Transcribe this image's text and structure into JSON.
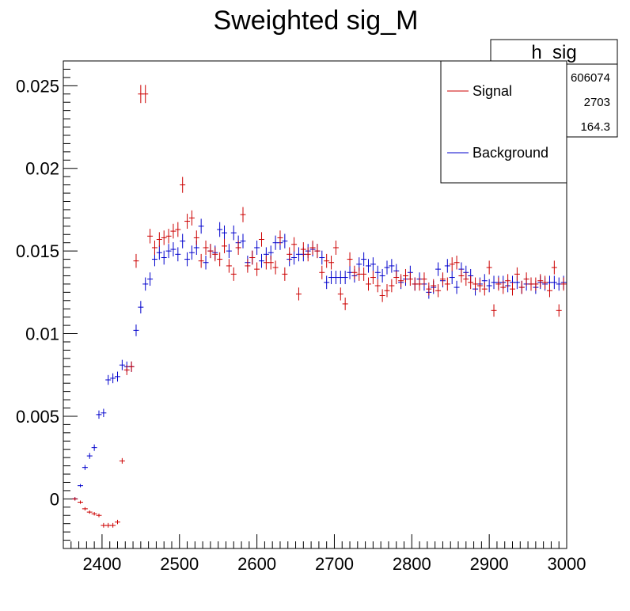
{
  "chart_data": {
    "type": "scatter",
    "title": "Sweighted sig_M",
    "xlabel": "",
    "ylabel": "",
    "xlim": [
      2350,
      3000
    ],
    "ylim": [
      -0.003,
      0.0265
    ],
    "x_ticks": [
      "2400",
      "2500",
      "2600",
      "2700",
      "2800",
      "2900",
      "3000"
    ],
    "y_ticks": [
      "0",
      "0.005",
      "0.01",
      "0.015",
      "0.02",
      "0.025"
    ],
    "grid": false,
    "legend_position": "top-right",
    "stats_box": {
      "title": "h_sig",
      "values": [
        "606074",
        "2703",
        "164.3"
      ]
    },
    "series": [
      {
        "name": "Signal",
        "color": "#cc0000",
        "x": [
          2365,
          2372,
          2378,
          2384,
          2390,
          2396,
          2402,
          2408,
          2414,
          2420,
          2426,
          2432,
          2438,
          2444,
          2450,
          2456,
          2462,
          2468,
          2474,
          2480,
          2486,
          2492,
          2498,
          2504,
          2510,
          2516,
          2522,
          2528,
          2534,
          2540,
          2546,
          2552,
          2558,
          2564,
          2570,
          2576,
          2582,
          2588,
          2594,
          2600,
          2606,
          2612,
          2618,
          2624,
          2630,
          2636,
          2642,
          2648,
          2654,
          2660,
          2666,
          2672,
          2678,
          2684,
          2690,
          2696,
          2702,
          2708,
          2714,
          2720,
          2726,
          2732,
          2738,
          2744,
          2750,
          2756,
          2762,
          2768,
          2774,
          2780,
          2786,
          2792,
          2798,
          2804,
          2810,
          2816,
          2822,
          2828,
          2834,
          2840,
          2846,
          2852,
          2858,
          2864,
          2870,
          2876,
          2882,
          2888,
          2894,
          2900,
          2906,
          2912,
          2918,
          2924,
          2930,
          2936,
          2942,
          2948,
          2954,
          2960,
          2966,
          2972,
          2978,
          2984,
          2990,
          2996
        ],
        "values": [
          0.0,
          -0.0002,
          -0.0006,
          -0.0008,
          -0.0009,
          -0.001,
          -0.0016,
          -0.0016,
          -0.0016,
          -0.0014,
          0.0023,
          0.0078,
          0.008,
          0.0144,
          0.0245,
          0.0245,
          0.0159,
          0.0152,
          0.0157,
          0.0158,
          0.0159,
          0.0162,
          0.0163,
          0.019,
          0.0168,
          0.017,
          0.0158,
          0.0144,
          0.0152,
          0.015,
          0.0148,
          0.0145,
          0.0153,
          0.0141,
          0.0136,
          0.0152,
          0.0172,
          0.0141,
          0.0146,
          0.0139,
          0.0157,
          0.0143,
          0.0143,
          0.014,
          0.0158,
          0.0136,
          0.0148,
          0.0154,
          0.0124,
          0.0151,
          0.0148,
          0.0152,
          0.015,
          0.0137,
          0.0144,
          0.0143,
          0.0152,
          0.0124,
          0.0118,
          0.0145,
          0.0137,
          0.0136,
          0.0136,
          0.013,
          0.0134,
          0.0129,
          0.0123,
          0.0126,
          0.0129,
          0.0134,
          0.0132,
          0.0135,
          0.0133,
          0.013,
          0.013,
          0.0133,
          0.0127,
          0.0129,
          0.0126,
          0.0133,
          0.013,
          0.0142,
          0.0143,
          0.0135,
          0.0133,
          0.0131,
          0.013,
          0.0129,
          0.0127,
          0.014,
          0.0114,
          0.013,
          0.0128,
          0.0132,
          0.0127,
          0.0136,
          0.0128,
          0.0133,
          0.013,
          0.013,
          0.0132,
          0.0131,
          0.0126,
          0.014,
          0.0114,
          0.013
        ]
      },
      {
        "name": "Background",
        "color": "#0000cc",
        "x": [
          2365,
          2372,
          2378,
          2384,
          2390,
          2396,
          2402,
          2408,
          2414,
          2420,
          2426,
          2432,
          2438,
          2444,
          2450,
          2456,
          2462,
          2468,
          2474,
          2480,
          2486,
          2492,
          2498,
          2504,
          2510,
          2516,
          2522,
          2528,
          2534,
          2540,
          2546,
          2552,
          2558,
          2564,
          2570,
          2576,
          2582,
          2588,
          2594,
          2600,
          2606,
          2612,
          2618,
          2624,
          2630,
          2636,
          2642,
          2648,
          2654,
          2660,
          2666,
          2672,
          2678,
          2684,
          2690,
          2696,
          2702,
          2708,
          2714,
          2720,
          2726,
          2732,
          2738,
          2744,
          2750,
          2756,
          2762,
          2768,
          2774,
          2780,
          2786,
          2792,
          2798,
          2804,
          2810,
          2816,
          2822,
          2828,
          2834,
          2840,
          2846,
          2852,
          2858,
          2864,
          2870,
          2876,
          2882,
          2888,
          2894,
          2900,
          2906,
          2912,
          2918,
          2924,
          2930,
          2936,
          2942,
          2948,
          2954,
          2960,
          2966,
          2972,
          2978,
          2984,
          2990,
          2996
        ],
        "values": [
          0.0,
          0.0008,
          0.0019,
          0.0026,
          0.0031,
          0.0051,
          0.0052,
          0.0072,
          0.0073,
          0.0074,
          0.0081,
          0.008,
          0.008,
          0.0102,
          0.0116,
          0.013,
          0.0133,
          0.0145,
          0.0149,
          0.0146,
          0.015,
          0.0151,
          0.0148,
          0.0156,
          0.0145,
          0.0149,
          0.0152,
          0.0165,
          0.0143,
          0.015,
          0.0149,
          0.0163,
          0.0161,
          0.015,
          0.0161,
          0.0155,
          0.0156,
          0.0143,
          0.0146,
          0.0152,
          0.0144,
          0.0148,
          0.0149,
          0.0155,
          0.0155,
          0.0156,
          0.0145,
          0.0146,
          0.0148,
          0.0148,
          0.015,
          0.0151,
          0.015,
          0.0146,
          0.0131,
          0.0134,
          0.0134,
          0.0134,
          0.0134,
          0.0137,
          0.0135,
          0.0142,
          0.0145,
          0.0141,
          0.0142,
          0.0137,
          0.0135,
          0.014,
          0.0141,
          0.0138,
          0.0131,
          0.0133,
          0.0137,
          0.013,
          0.0133,
          0.013,
          0.0125,
          0.0128,
          0.0139,
          0.0132,
          0.0141,
          0.0134,
          0.0128,
          0.0139,
          0.0137,
          0.0135,
          0.0127,
          0.013,
          0.0132,
          0.0129,
          0.0131,
          0.0131,
          0.0131,
          0.0129,
          0.0131,
          0.0131,
          0.0128,
          0.013,
          0.013,
          0.0128,
          0.0131,
          0.013,
          0.0131,
          0.0131,
          0.013,
          0.0131
        ]
      }
    ]
  }
}
